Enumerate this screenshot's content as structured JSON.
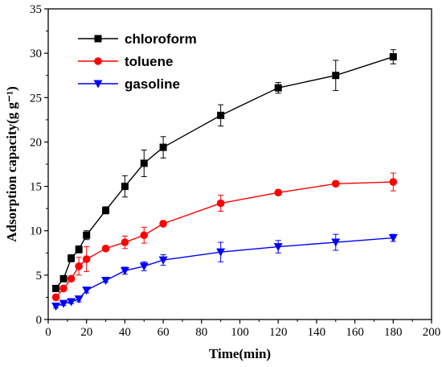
{
  "chart_data": {
    "type": "line",
    "xlabel": "Time(min)",
    "ylabel": "Adsorption capacity(g g⁻¹)",
    "xlim": [
      0,
      200
    ],
    "ylim": [
      0,
      35
    ],
    "xticks": [
      0,
      20,
      40,
      60,
      80,
      100,
      120,
      140,
      160,
      180,
      200
    ],
    "yticks": [
      0,
      5,
      10,
      15,
      20,
      25,
      30,
      35
    ],
    "legend_position": "top-left",
    "grid": false,
    "series": [
      {
        "name": "chloroform",
        "color": "#000000",
        "marker": "square",
        "x": [
          4,
          8,
          12,
          16,
          20,
          30,
          40,
          50,
          60,
          90,
          120,
          150,
          180
        ],
        "y": [
          3.5,
          4.6,
          6.9,
          7.9,
          9.5,
          12.3,
          15.0,
          17.6,
          19.4,
          23.0,
          26.1,
          27.5,
          29.6
        ],
        "err": [
          0.3,
          0.3,
          0.4,
          0.4,
          0.5,
          0.4,
          1.2,
          1.5,
          1.2,
          1.2,
          0.6,
          1.7,
          0.8
        ]
      },
      {
        "name": "toluene",
        "color": "#ff0000",
        "marker": "circle",
        "x": [
          4,
          8,
          12,
          16,
          20,
          30,
          40,
          50,
          60,
          90,
          120,
          150,
          180
        ],
        "y": [
          2.5,
          3.5,
          4.6,
          6.0,
          6.8,
          8.0,
          8.7,
          9.5,
          10.8,
          13.1,
          14.3,
          15.3,
          15.5
        ],
        "err": [
          0.3,
          0.3,
          0.3,
          1.0,
          1.4,
          0.3,
          0.7,
          0.9,
          0.3,
          0.9,
          0.3,
          0.3,
          1.0
        ]
      },
      {
        "name": "gasoline",
        "color": "#0000ff",
        "marker": "triangle-down",
        "x": [
          4,
          8,
          12,
          16,
          20,
          30,
          40,
          50,
          60,
          90,
          120,
          150,
          180
        ],
        "y": [
          1.5,
          1.8,
          2.0,
          2.3,
          3.3,
          4.4,
          5.5,
          6.0,
          6.7,
          7.6,
          8.2,
          8.7,
          9.2
        ],
        "err": [
          0.2,
          0.2,
          0.2,
          0.3,
          0.3,
          0.2,
          0.4,
          0.5,
          0.6,
          1.1,
          0.7,
          0.9,
          0.4
        ]
      }
    ]
  }
}
